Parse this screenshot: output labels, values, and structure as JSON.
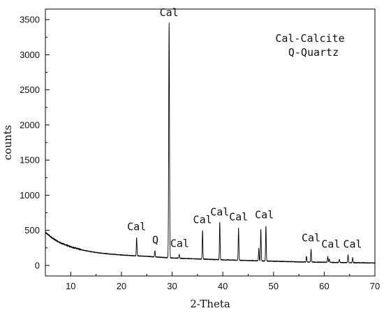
{
  "chart_data": {
    "type": "line",
    "xlabel": "2-Theta",
    "ylabel": "counts",
    "xlim": [
      5,
      70
    ],
    "ylim": [
      -150,
      3650
    ],
    "x_ticks": [
      10,
      20,
      30,
      40,
      50,
      60,
      70
    ],
    "y_ticks": [
      0,
      500,
      1000,
      1500,
      2000,
      2500,
      3000,
      3500
    ],
    "legend": [
      "Cal-Calcite",
      "Q-Quartz"
    ],
    "legend_position": "top-right",
    "grid": false,
    "baseline": [
      [
        5,
        470
      ],
      [
        6,
        410
      ],
      [
        7,
        360
      ],
      [
        8,
        320
      ],
      [
        10,
        265
      ],
      [
        12,
        225
      ],
      [
        14,
        195
      ],
      [
        16,
        175
      ],
      [
        18,
        160
      ],
      [
        20,
        150
      ],
      [
        22,
        140
      ],
      [
        25,
        130
      ],
      [
        28,
        115
      ],
      [
        32,
        100
      ],
      [
        36,
        90
      ],
      [
        40,
        80
      ],
      [
        45,
        70
      ],
      [
        50,
        60
      ],
      [
        55,
        50
      ],
      [
        60,
        45
      ],
      [
        65,
        40
      ],
      [
        70,
        35
      ]
    ],
    "peaks": [
      {
        "x": 23.0,
        "y": 390
      },
      {
        "x": 26.6,
        "y": 210
      },
      {
        "x": 29.4,
        "y": 3450
      },
      {
        "x": 31.4,
        "y": 160
      },
      {
        "x": 36.0,
        "y": 500
      },
      {
        "x": 39.4,
        "y": 620
      },
      {
        "x": 43.1,
        "y": 530
      },
      {
        "x": 47.1,
        "y": 240
      },
      {
        "x": 47.5,
        "y": 520
      },
      {
        "x": 48.5,
        "y": 560
      },
      {
        "x": 56.5,
        "y": 130
      },
      {
        "x": 57.4,
        "y": 230
      },
      {
        "x": 60.7,
        "y": 130
      },
      {
        "x": 61.0,
        "y": 90
      },
      {
        "x": 63.0,
        "y": 85
      },
      {
        "x": 64.7,
        "y": 150
      },
      {
        "x": 65.6,
        "y": 110
      }
    ],
    "peak_labels": [
      {
        "text": "Cal",
        "x": 23.0,
        "y": 500
      },
      {
        "text": "Q",
        "x": 26.7,
        "y": 315
      },
      {
        "text": "Cal",
        "x": 29.4,
        "y": 3550
      },
      {
        "text": "Cal",
        "x": 31.5,
        "y": 265
      },
      {
        "text": "Cal",
        "x": 36.0,
        "y": 600
      },
      {
        "text": "Cal",
        "x": 39.4,
        "y": 710
      },
      {
        "text": "Cal",
        "x": 43.1,
        "y": 640
      },
      {
        "text": "Cal",
        "x": 48.2,
        "y": 670
      },
      {
        "text": "Cal",
        "x": 57.4,
        "y": 340
      },
      {
        "text": "Cal",
        "x": 61.3,
        "y": 255
      },
      {
        "text": "Cal",
        "x": 65.6,
        "y": 255
      }
    ]
  }
}
